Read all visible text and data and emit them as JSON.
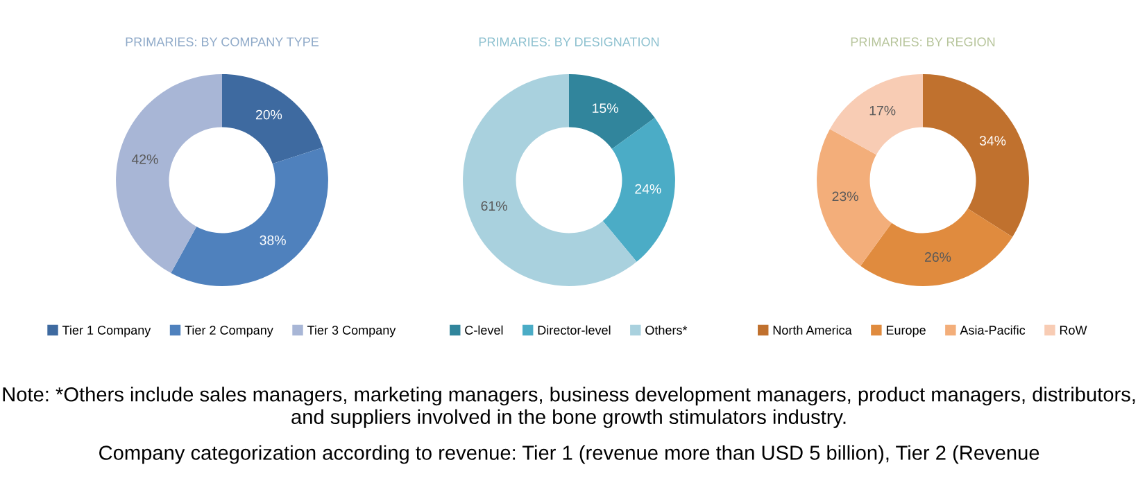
{
  "chart_data": [
    {
      "type": "donut",
      "title": "PRIMARIES: BY COMPANY TYPE",
      "categories": [
        "Tier 1 Company",
        "Tier 2 Company",
        "Tier 3 Company"
      ],
      "values": [
        20,
        38,
        42
      ],
      "colors": [
        "#3e6aa0",
        "#4f81bd",
        "#a8b6d6"
      ],
      "value_labels": [
        "20%",
        "38%",
        "42%"
      ],
      "legend": "bottom",
      "annotations": [
        "Note: *Others include sales managers, marketing managers, business development managers, product managers, distributors, and suppliers involved in the bone growth stimulators industry.",
        "Company categorization according to revenue: Tier 1 (revenue more than USD 5 billion), Tier 2 (Revenue"
      ]
    },
    {
      "type": "donut",
      "title": "PRIMARIES: BY DESIGNATION",
      "categories": [
        "C-level",
        "Director-level",
        "Others*"
      ],
      "values": [
        15,
        24,
        61
      ],
      "colors": [
        "#31859c",
        "#4bacc6",
        "#a9d1de"
      ],
      "value_labels": [
        "15%",
        "24%",
        "61%"
      ],
      "legend": "bottom"
    },
    {
      "type": "donut",
      "title": "PRIMARIES: BY REGION",
      "categories": [
        "North America",
        "Europe",
        "Asia-Pacific",
        "RoW"
      ],
      "values": [
        34,
        26,
        23,
        17
      ],
      "colors": [
        "#c0712e",
        "#e08b3e",
        "#f3ae7a",
        "#f8ccb4"
      ],
      "value_labels": [
        "34%",
        "26%",
        "23%",
        "17%"
      ],
      "legend": "bottom"
    }
  ]
}
